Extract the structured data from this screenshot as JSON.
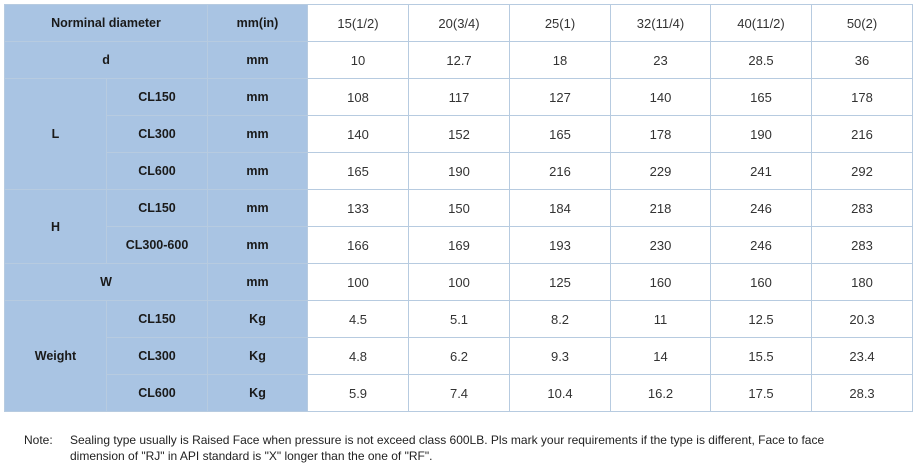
{
  "header": {
    "label": "Norminal diameter",
    "unit": "mm(in)",
    "sizes": [
      "15(1/2)",
      "20(3/4)",
      "25(1)",
      "32(11/4)",
      "40(11/2)",
      "50(2)"
    ]
  },
  "rows": {
    "d": {
      "label": "d",
      "unit": "mm",
      "values": [
        "10",
        "12.7",
        "18",
        "23",
        "28.5",
        "36"
      ]
    },
    "L": {
      "label": "L",
      "sub": [
        {
          "class": "CL150",
          "unit": "mm",
          "values": [
            "108",
            "117",
            "127",
            "140",
            "165",
            "178"
          ]
        },
        {
          "class": "CL300",
          "unit": "mm",
          "values": [
            "140",
            "152",
            "165",
            "178",
            "190",
            "216"
          ]
        },
        {
          "class": "CL600",
          "unit": "mm",
          "values": [
            "165",
            "190",
            "216",
            "229",
            "241",
            "292"
          ]
        }
      ]
    },
    "H": {
      "label": "H",
      "sub": [
        {
          "class": "CL150",
          "unit": "mm",
          "values": [
            "133",
            "150",
            "184",
            "218",
            "246",
            "283"
          ]
        },
        {
          "class": "CL300-600",
          "unit": "mm",
          "values": [
            "166",
            "169",
            "193",
            "230",
            "246",
            "283"
          ]
        }
      ]
    },
    "W": {
      "label": "W",
      "unit": "mm",
      "values": [
        "100",
        "100",
        "125",
        "160",
        "160",
        "180"
      ]
    },
    "Weight": {
      "label": "Weight",
      "sub": [
        {
          "class": "CL150",
          "unit": "Kg",
          "values": [
            "4.5",
            "5.1",
            "8.2",
            "11",
            "12.5",
            "20.3"
          ]
        },
        {
          "class": "CL300",
          "unit": "Kg",
          "values": [
            "4.8",
            "6.2",
            "9.3",
            "14",
            "15.5",
            "23.4"
          ]
        },
        {
          "class": "CL600",
          "unit": "Kg",
          "values": [
            "5.9",
            "7.4",
            "10.4",
            "16.2",
            "17.5",
            "28.3"
          ]
        }
      ]
    }
  },
  "note": {
    "label": "Note:",
    "text": "Sealing type usually is Raised Face when pressure is not exceed class 600LB. Pls mark your requirements if the type is different, Face to face dimension of \"RJ\" in API standard is \"X\" longer than the one of \"RF\"."
  },
  "colors": {
    "header_bg": "#a9c4e3",
    "border": "#b7cbe0",
    "value_bg": "#ffffff"
  }
}
